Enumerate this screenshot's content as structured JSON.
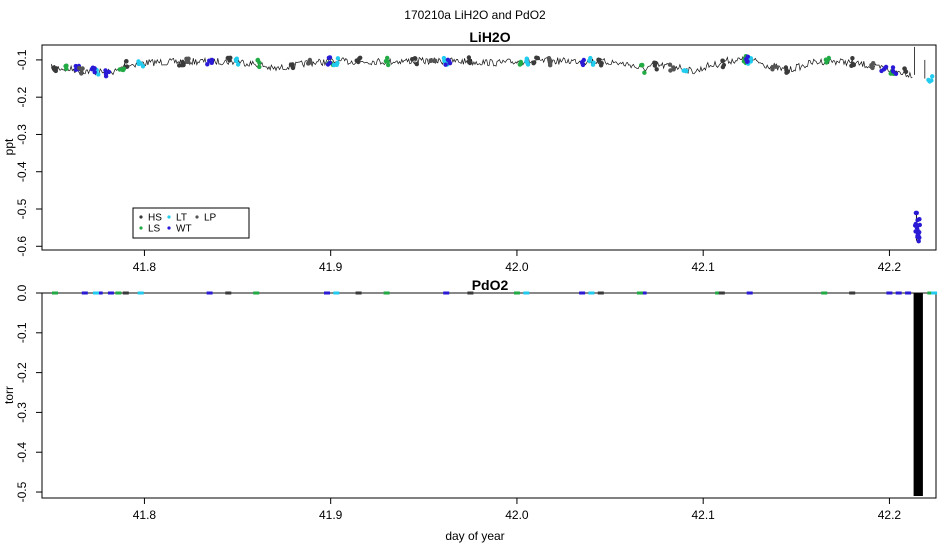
{
  "figure": {
    "title": "170210a   LiH2O and PdO2",
    "xlabel": "day of year"
  },
  "colors": {
    "HS": "#3a3a3a",
    "LS": "#22aa44",
    "LT": "#22ccee",
    "WT": "#2a1ad6",
    "LP": "#555555",
    "line": "#111111",
    "axis": "#000000"
  },
  "chart_data": [
    {
      "type": "line",
      "title": "LiH2O",
      "ylabel": "ppt",
      "xlim": [
        41.745,
        42.225
      ],
      "ylim": [
        -0.61,
        -0.06
      ],
      "x_ticks": [
        41.8,
        41.9,
        42.0,
        42.1,
        42.2
      ],
      "x_tick_labels": [
        "41.8",
        "41.9",
        "42.0",
        "42.1",
        "42.2"
      ],
      "y_ticks": [
        -0.1,
        -0.2,
        -0.3,
        -0.4,
        -0.5,
        -0.6
      ],
      "y_tick_labels": [
        "-0.1",
        "-0.2",
        "-0.3",
        "-0.4",
        "-0.5",
        "-0.6"
      ],
      "grid": false,
      "legend": {
        "placement": "bottom-left",
        "entries": [
          "HS",
          "LT",
          "LP",
          "LS",
          "WT"
        ]
      },
      "series": [
        {
          "name": "",
          "x": [
            41.75,
            41.76,
            41.77,
            41.78,
            41.785,
            41.79,
            41.8,
            41.81,
            41.82,
            41.83,
            41.84,
            41.85,
            41.86,
            41.87,
            41.88,
            41.89,
            41.9,
            41.91,
            41.92,
            41.93,
            41.94,
            41.95,
            41.96,
            41.97,
            41.98,
            41.99,
            42.0,
            42.01,
            42.02,
            42.03,
            42.04,
            42.05,
            42.06,
            42.067,
            42.075,
            42.085,
            42.095,
            42.105,
            42.113,
            42.12,
            42.128,
            42.135,
            42.145,
            42.152,
            42.16,
            42.168,
            42.175,
            42.185,
            42.195,
            42.205,
            42.213
          ],
          "y": [
            -0.12,
            -0.125,
            -0.13,
            -0.134,
            -0.13,
            -0.114,
            -0.108,
            -0.106,
            -0.105,
            -0.104,
            -0.104,
            -0.105,
            -0.111,
            -0.124,
            -0.115,
            -0.107,
            -0.105,
            -0.104,
            -0.104,
            -0.104,
            -0.103,
            -0.103,
            -0.103,
            -0.104,
            -0.106,
            -0.108,
            -0.105,
            -0.104,
            -0.103,
            -0.103,
            -0.104,
            -0.106,
            -0.112,
            -0.124,
            -0.115,
            -0.118,
            -0.13,
            -0.114,
            -0.102,
            -0.1,
            -0.104,
            -0.115,
            -0.128,
            -0.118,
            -0.106,
            -0.103,
            -0.105,
            -0.112,
            -0.122,
            -0.132,
            -0.14
          ]
        }
      ],
      "markers": [
        {
          "name": "HS",
          "x": [
            41.752,
            41.79,
            41.82,
            41.845,
            41.88,
            41.915,
            41.945,
            41.975,
            42.01,
            42.045,
            42.075,
            42.11,
            42.145,
            42.18,
            42.208
          ],
          "y": [
            -0.121,
            -0.114,
            -0.105,
            -0.104,
            -0.115,
            -0.104,
            -0.103,
            -0.104,
            -0.104,
            -0.105,
            -0.115,
            -0.11,
            -0.128,
            -0.106,
            -0.134
          ]
        },
        {
          "name": "LS",
          "x": [
            41.758,
            41.788,
            41.862,
            41.9,
            41.93,
            42.002,
            42.068,
            42.122,
            42.167,
            42.202
          ],
          "y": [
            -0.124,
            -0.12,
            -0.11,
            -0.105,
            -0.104,
            -0.105,
            -0.124,
            -0.1,
            -0.104,
            -0.128
          ]
        },
        {
          "name": "LT",
          "x": [
            41.774,
            41.798,
            41.85,
            41.903,
            41.962,
            42.005,
            42.04,
            42.09,
            42.125,
            42.222
          ],
          "y": [
            -0.132,
            -0.109,
            -0.105,
            -0.105,
            -0.103,
            -0.105,
            -0.104,
            -0.125,
            -0.102,
            -0.15
          ]
        },
        {
          "name": "WT",
          "x": [
            41.764,
            41.772,
            41.78,
            41.835,
            41.899,
            41.963,
            42.035,
            42.123,
            42.197,
            42.203
          ],
          "y": [
            -0.127,
            -0.131,
            -0.134,
            -0.105,
            -0.104,
            -0.103,
            -0.104,
            -0.1,
            -0.126,
            -0.13
          ]
        },
        {
          "name": "WT",
          "x": [
            42.215,
            42.215,
            42.215,
            42.215,
            42.216
          ],
          "y": [
            -0.52,
            -0.535,
            -0.55,
            -0.565,
            -0.58
          ]
        },
        {
          "name": "LP",
          "x": [
            41.766,
            41.823,
            41.888,
            41.955,
            42.018,
            42.083,
            42.138,
            42.19
          ],
          "y": [
            -0.128,
            -0.105,
            -0.108,
            -0.103,
            -0.104,
            -0.118,
            -0.12,
            -0.118
          ]
        }
      ]
    },
    {
      "type": "line",
      "title": "PdO2",
      "ylabel": "torr",
      "xlim": [
        41.745,
        42.225
      ],
      "ylim": [
        -0.515,
        0.0
      ],
      "x_ticks": [
        41.8,
        41.9,
        42.0,
        42.1,
        42.2
      ],
      "x_tick_labels": [
        "41.8",
        "41.9",
        "42.0",
        "42.1",
        "42.2"
      ],
      "y_ticks": [
        0.0,
        -0.1,
        -0.2,
        -0.3,
        -0.4,
        -0.5
      ],
      "y_tick_labels": [
        "0.0",
        "-0.1",
        "-0.2",
        "-0.3",
        "-0.4",
        "-0.5"
      ],
      "grid": false,
      "series": [
        {
          "name": "",
          "x": [
            41.75,
            42.225
          ],
          "y": [
            0.0,
            0.0
          ]
        }
      ],
      "spike": {
        "x": [
          42.213,
          42.218
        ],
        "y_min": -0.51,
        "y_max": 0.0
      },
      "markers": [
        {
          "name": "WT",
          "x": [
            41.768,
            41.776,
            41.782,
            41.835,
            41.898,
            41.962,
            42.035,
            42.068,
            42.125,
            42.2,
            42.205,
            42.21
          ],
          "y": [
            0,
            0,
            0,
            0,
            0,
            0,
            0,
            0,
            0,
            0,
            0,
            0
          ]
        },
        {
          "name": "LS",
          "x": [
            41.752,
            41.786,
            41.86,
            41.93,
            42.0,
            42.066,
            42.108,
            42.165,
            42.222
          ],
          "y": [
            0,
            0,
            0,
            0,
            0,
            0,
            0,
            0,
            0
          ]
        },
        {
          "name": "LT",
          "x": [
            41.774,
            41.798,
            41.903,
            42.005,
            42.04,
            42.224
          ],
          "y": [
            0,
            0,
            0,
            0,
            0,
            0
          ]
        },
        {
          "name": "HS",
          "x": [
            41.79,
            41.845,
            41.915,
            41.975,
            42.045,
            42.11,
            42.18
          ],
          "y": [
            0,
            0,
            0,
            0,
            0,
            0,
            0
          ]
        }
      ]
    }
  ]
}
